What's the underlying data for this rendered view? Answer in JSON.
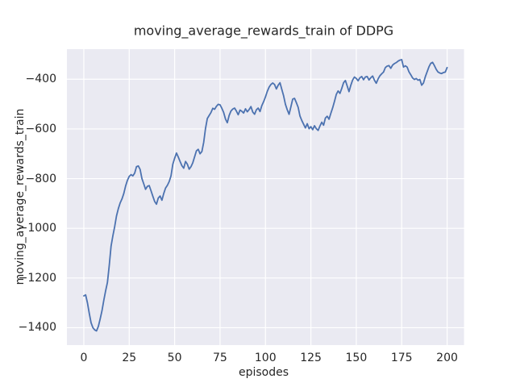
{
  "chart_data": {
    "type": "line",
    "title": "moving_average_rewards_train of DDPG",
    "xlabel": "episodes",
    "ylabel": "moving_average_rewards_train",
    "x_ticks": [
      0,
      25,
      50,
      75,
      100,
      125,
      150,
      175,
      200
    ],
    "y_ticks": [
      -1400,
      -1200,
      -1000,
      -800,
      -600,
      -400
    ],
    "xlim": [
      -9.3,
      209.3
    ],
    "ylim": [
      -1470,
      -279
    ],
    "grid": true,
    "legend_position": "none",
    "colors": {
      "figure_background": "#ffffff",
      "plot_background": "#eaeaf2",
      "grid": "#ffffff",
      "text": "#262626",
      "line": "#4c72b0"
    },
    "series": [
      {
        "name": "moving_average_rewards_train",
        "x_start": 0,
        "x_step": 1,
        "color": "#4c72b0",
        "values": [
          -1272,
          -1268,
          -1300,
          -1342,
          -1380,
          -1400,
          -1409,
          -1413,
          -1395,
          -1365,
          -1332,
          -1290,
          -1252,
          -1218,
          -1150,
          -1072,
          -1030,
          -993,
          -950,
          -921,
          -898,
          -882,
          -860,
          -830,
          -807,
          -791,
          -784,
          -789,
          -778,
          -752,
          -749,
          -763,
          -800,
          -821,
          -843,
          -831,
          -828,
          -849,
          -871,
          -892,
          -903,
          -878,
          -870,
          -887,
          -860,
          -838,
          -827,
          -812,
          -789,
          -742,
          -718,
          -697,
          -713,
          -731,
          -748,
          -758,
          -731,
          -742,
          -762,
          -752,
          -736,
          -712,
          -688,
          -682,
          -700,
          -691,
          -654,
          -598,
          -558,
          -546,
          -534,
          -517,
          -521,
          -509,
          -501,
          -503,
          -517,
          -534,
          -560,
          -575,
          -546,
          -528,
          -520,
          -516,
          -528,
          -543,
          -524,
          -529,
          -536,
          -519,
          -531,
          -522,
          -510,
          -532,
          -541,
          -523,
          -516,
          -530,
          -506,
          -490,
          -471,
          -449,
          -432,
          -421,
          -415,
          -421,
          -439,
          -424,
          -414,
          -441,
          -467,
          -501,
          -523,
          -541,
          -511,
          -480,
          -477,
          -494,
          -513,
          -548,
          -566,
          -581,
          -596,
          -579,
          -599,
          -591,
          -603,
          -587,
          -599,
          -606,
          -588,
          -573,
          -585,
          -556,
          -549,
          -561,
          -537,
          -515,
          -489,
          -461,
          -447,
          -457,
          -437,
          -414,
          -405,
          -427,
          -450,
          -424,
          -403,
          -391,
          -397,
          -406,
          -394,
          -389,
          -402,
          -391,
          -389,
          -403,
          -394,
          -387,
          -404,
          -416,
          -399,
          -386,
          -378,
          -371,
          -353,
          -347,
          -345,
          -356,
          -343,
          -337,
          -333,
          -327,
          -323,
          -321,
          -351,
          -346,
          -351,
          -370,
          -382,
          -395,
          -401,
          -397,
          -404,
          -401,
          -424,
          -415,
          -390,
          -370,
          -350,
          -336,
          -332,
          -345,
          -360,
          -371,
          -375,
          -377,
          -373,
          -371,
          -353
        ]
      }
    ]
  }
}
